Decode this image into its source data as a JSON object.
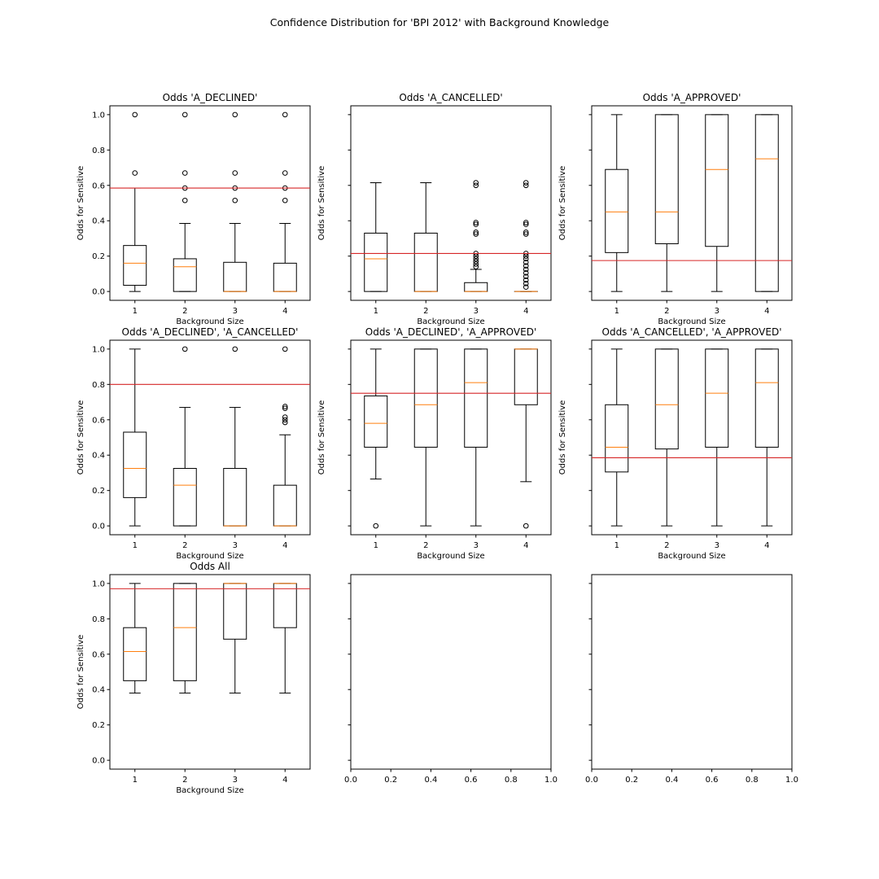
{
  "figure": {
    "title": "Confidence Distribution for 'BPI 2012' with Background Knowledge"
  },
  "colors": {
    "box": "#000000",
    "median": "#ff7f0e",
    "threshold": "#d62728",
    "axes": "#000000"
  },
  "chart_data": [
    {
      "type": "box",
      "title": "Odds 'A_DECLINED'",
      "xlabel": "Background Size",
      "ylabel": "Odds for Sensitive",
      "categories": [
        "1",
        "2",
        "3",
        "4"
      ],
      "ylim": [
        -0.05,
        1.05
      ],
      "yticks": [
        "0.0",
        "0.2",
        "0.4",
        "0.6",
        "0.8",
        "1.0"
      ],
      "show_ytick_labels": true,
      "threshold": 0.585,
      "boxes": [
        {
          "whislo": 0.0,
          "q1": 0.035,
          "med": 0.16,
          "q3": 0.26,
          "whishi": 0.585,
          "fliers": [
            0.67,
            1.0
          ]
        },
        {
          "whislo": 0.0,
          "q1": 0.0,
          "med": 0.14,
          "q3": 0.185,
          "whishi": 0.385,
          "fliers": [
            0.515,
            0.585,
            0.67,
            1.0
          ]
        },
        {
          "whislo": 0.0,
          "q1": 0.0,
          "med": 0.0,
          "q3": 0.165,
          "whishi": 0.385,
          "fliers": [
            0.515,
            0.585,
            0.67,
            1.0
          ]
        },
        {
          "whislo": 0.0,
          "q1": 0.0,
          "med": 0.0,
          "q3": 0.16,
          "whishi": 0.385,
          "fliers": [
            0.515,
            0.585,
            0.67,
            1.0
          ]
        }
      ]
    },
    {
      "type": "box",
      "title": "Odds 'A_CANCELLED'",
      "xlabel": "Background Size",
      "ylabel": "Odds for Sensitive",
      "categories": [
        "1",
        "2",
        "3",
        "4"
      ],
      "ylim": [
        -0.05,
        1.05
      ],
      "yticks": [
        "0.0",
        "0.2",
        "0.4",
        "0.6",
        "0.8",
        "1.0"
      ],
      "show_ytick_labels": false,
      "threshold": 0.215,
      "boxes": [
        {
          "whislo": 0.0,
          "q1": 0.0,
          "med": 0.185,
          "q3": 0.33,
          "whishi": 0.615,
          "fliers": []
        },
        {
          "whislo": 0.0,
          "q1": 0.0,
          "med": 0.0,
          "q3": 0.33,
          "whishi": 0.615,
          "fliers": []
        },
        {
          "whislo": 0.0,
          "q1": 0.0,
          "med": 0.0,
          "q3": 0.05,
          "whishi": 0.125,
          "fliers": [
            0.14,
            0.155,
            0.17,
            0.185,
            0.2,
            0.215,
            0.325,
            0.335,
            0.38,
            0.39,
            0.6,
            0.615
          ]
        },
        {
          "whislo": 0.0,
          "q1": 0.0,
          "med": 0.0,
          "q3": 0.0,
          "whishi": 0.0,
          "fliers": [
            0.025,
            0.045,
            0.065,
            0.085,
            0.105,
            0.125,
            0.145,
            0.165,
            0.185,
            0.2,
            0.215,
            0.325,
            0.335,
            0.38,
            0.39,
            0.6,
            0.615
          ]
        }
      ]
    },
    {
      "type": "box",
      "title": "Odds 'A_APPROVED'",
      "xlabel": "Background Size",
      "ylabel": "Odds for Sensitive",
      "categories": [
        "1",
        "2",
        "3",
        "4"
      ],
      "ylim": [
        -0.05,
        1.05
      ],
      "yticks": [
        "0.0",
        "0.2",
        "0.4",
        "0.6",
        "0.8",
        "1.0"
      ],
      "show_ytick_labels": false,
      "threshold": 0.175,
      "boxes": [
        {
          "whislo": 0.0,
          "q1": 0.22,
          "med": 0.45,
          "q3": 0.69,
          "whishi": 1.0,
          "fliers": []
        },
        {
          "whislo": 0.0,
          "q1": 0.27,
          "med": 0.45,
          "q3": 1.0,
          "whishi": 1.0,
          "fliers": []
        },
        {
          "whislo": 0.0,
          "q1": 0.255,
          "med": 0.69,
          "q3": 1.0,
          "whishi": 1.0,
          "fliers": []
        },
        {
          "whislo": 0.0,
          "q1": 0.0,
          "med": 0.75,
          "q3": 1.0,
          "whishi": 1.0,
          "fliers": []
        }
      ]
    },
    {
      "type": "box",
      "title": "Odds 'A_DECLINED', 'A_CANCELLED'",
      "xlabel": "Background Size",
      "ylabel": "Odds for Sensitive",
      "categories": [
        "1",
        "2",
        "3",
        "4"
      ],
      "ylim": [
        -0.05,
        1.05
      ],
      "yticks": [
        "0.0",
        "0.2",
        "0.4",
        "0.6",
        "0.8",
        "1.0"
      ],
      "show_ytick_labels": true,
      "threshold": 0.8,
      "boxes": [
        {
          "whislo": 0.0,
          "q1": 0.16,
          "med": 0.325,
          "q3": 0.53,
          "whishi": 1.0,
          "fliers": []
        },
        {
          "whislo": 0.0,
          "q1": 0.0,
          "med": 0.23,
          "q3": 0.325,
          "whishi": 0.67,
          "fliers": [
            1.0
          ]
        },
        {
          "whislo": 0.0,
          "q1": 0.0,
          "med": 0.0,
          "q3": 0.325,
          "whishi": 0.67,
          "fliers": [
            1.0
          ]
        },
        {
          "whislo": 0.0,
          "q1": 0.0,
          "med": 0.0,
          "q3": 0.23,
          "whishi": 0.515,
          "fliers": [
            0.585,
            0.6,
            0.615,
            0.665,
            0.675,
            1.0
          ]
        }
      ]
    },
    {
      "type": "box",
      "title": "Odds 'A_DECLINED', 'A_APPROVED'",
      "xlabel": "Background Size",
      "ylabel": "Odds for Sensitive",
      "categories": [
        "1",
        "2",
        "3",
        "4"
      ],
      "ylim": [
        -0.05,
        1.05
      ],
      "yticks": [
        "0.0",
        "0.2",
        "0.4",
        "0.6",
        "0.8",
        "1.0"
      ],
      "show_ytick_labels": false,
      "threshold": 0.75,
      "boxes": [
        {
          "whislo": 0.265,
          "q1": 0.445,
          "med": 0.58,
          "q3": 0.735,
          "whishi": 1.0,
          "fliers": [
            0.0
          ]
        },
        {
          "whislo": 0.0,
          "q1": 0.445,
          "med": 0.685,
          "q3": 1.0,
          "whishi": 1.0,
          "fliers": []
        },
        {
          "whislo": 0.0,
          "q1": 0.445,
          "med": 0.81,
          "q3": 1.0,
          "whishi": 1.0,
          "fliers": []
        },
        {
          "whislo": 0.25,
          "q1": 0.685,
          "med": 1.0,
          "q3": 1.0,
          "whishi": 1.0,
          "fliers": [
            0.0
          ]
        }
      ]
    },
    {
      "type": "box",
      "title": "Odds 'A_CANCELLED', 'A_APPROVED'",
      "xlabel": "Background Size",
      "ylabel": "Odds for Sensitive",
      "categories": [
        "1",
        "2",
        "3",
        "4"
      ],
      "ylim": [
        -0.05,
        1.05
      ],
      "yticks": [
        "0.0",
        "0.2",
        "0.4",
        "0.6",
        "0.8",
        "1.0"
      ],
      "show_ytick_labels": false,
      "threshold": 0.385,
      "boxes": [
        {
          "whislo": 0.0,
          "q1": 0.305,
          "med": 0.445,
          "q3": 0.685,
          "whishi": 1.0,
          "fliers": []
        },
        {
          "whislo": 0.0,
          "q1": 0.435,
          "med": 0.685,
          "q3": 1.0,
          "whishi": 1.0,
          "fliers": []
        },
        {
          "whislo": 0.0,
          "q1": 0.445,
          "med": 0.75,
          "q3": 1.0,
          "whishi": 1.0,
          "fliers": []
        },
        {
          "whislo": 0.0,
          "q1": 0.445,
          "med": 0.81,
          "q3": 1.0,
          "whishi": 1.0,
          "fliers": []
        }
      ]
    },
    {
      "type": "box",
      "title": "Odds All",
      "xlabel": "Background Size",
      "ylabel": "Odds for Sensitive",
      "categories": [
        "1",
        "2",
        "3",
        "4"
      ],
      "ylim": [
        -0.05,
        1.05
      ],
      "yticks": [
        "0.0",
        "0.2",
        "0.4",
        "0.6",
        "0.8",
        "1.0"
      ],
      "show_ytick_labels": true,
      "threshold": 0.97,
      "boxes": [
        {
          "whislo": 0.38,
          "q1": 0.45,
          "med": 0.615,
          "q3": 0.75,
          "whishi": 1.0,
          "fliers": []
        },
        {
          "whislo": 0.38,
          "q1": 0.45,
          "med": 0.75,
          "q3": 1.0,
          "whishi": 1.0,
          "fliers": []
        },
        {
          "whislo": 0.38,
          "q1": 0.685,
          "med": 1.0,
          "q3": 1.0,
          "whishi": 1.0,
          "fliers": []
        },
        {
          "whislo": 0.38,
          "q1": 0.75,
          "med": 1.0,
          "q3": 1.0,
          "whishi": 1.0,
          "fliers": []
        }
      ]
    },
    {
      "type": "empty",
      "title": "",
      "xlim": [
        0,
        1
      ],
      "xticks": [
        "0.0",
        "0.2",
        "0.4",
        "0.6",
        "0.8",
        "1.0"
      ],
      "yticks": [
        "0.0",
        "0.2",
        "0.4",
        "0.6",
        "0.8",
        "1.0"
      ],
      "show_ytick_labels": false
    },
    {
      "type": "empty",
      "title": "",
      "xlim": [
        0,
        1
      ],
      "xticks": [
        "0.0",
        "0.2",
        "0.4",
        "0.6",
        "0.8",
        "1.0"
      ],
      "yticks": [
        "0.0",
        "0.2",
        "0.4",
        "0.6",
        "0.8",
        "1.0"
      ],
      "show_ytick_labels": false
    }
  ]
}
